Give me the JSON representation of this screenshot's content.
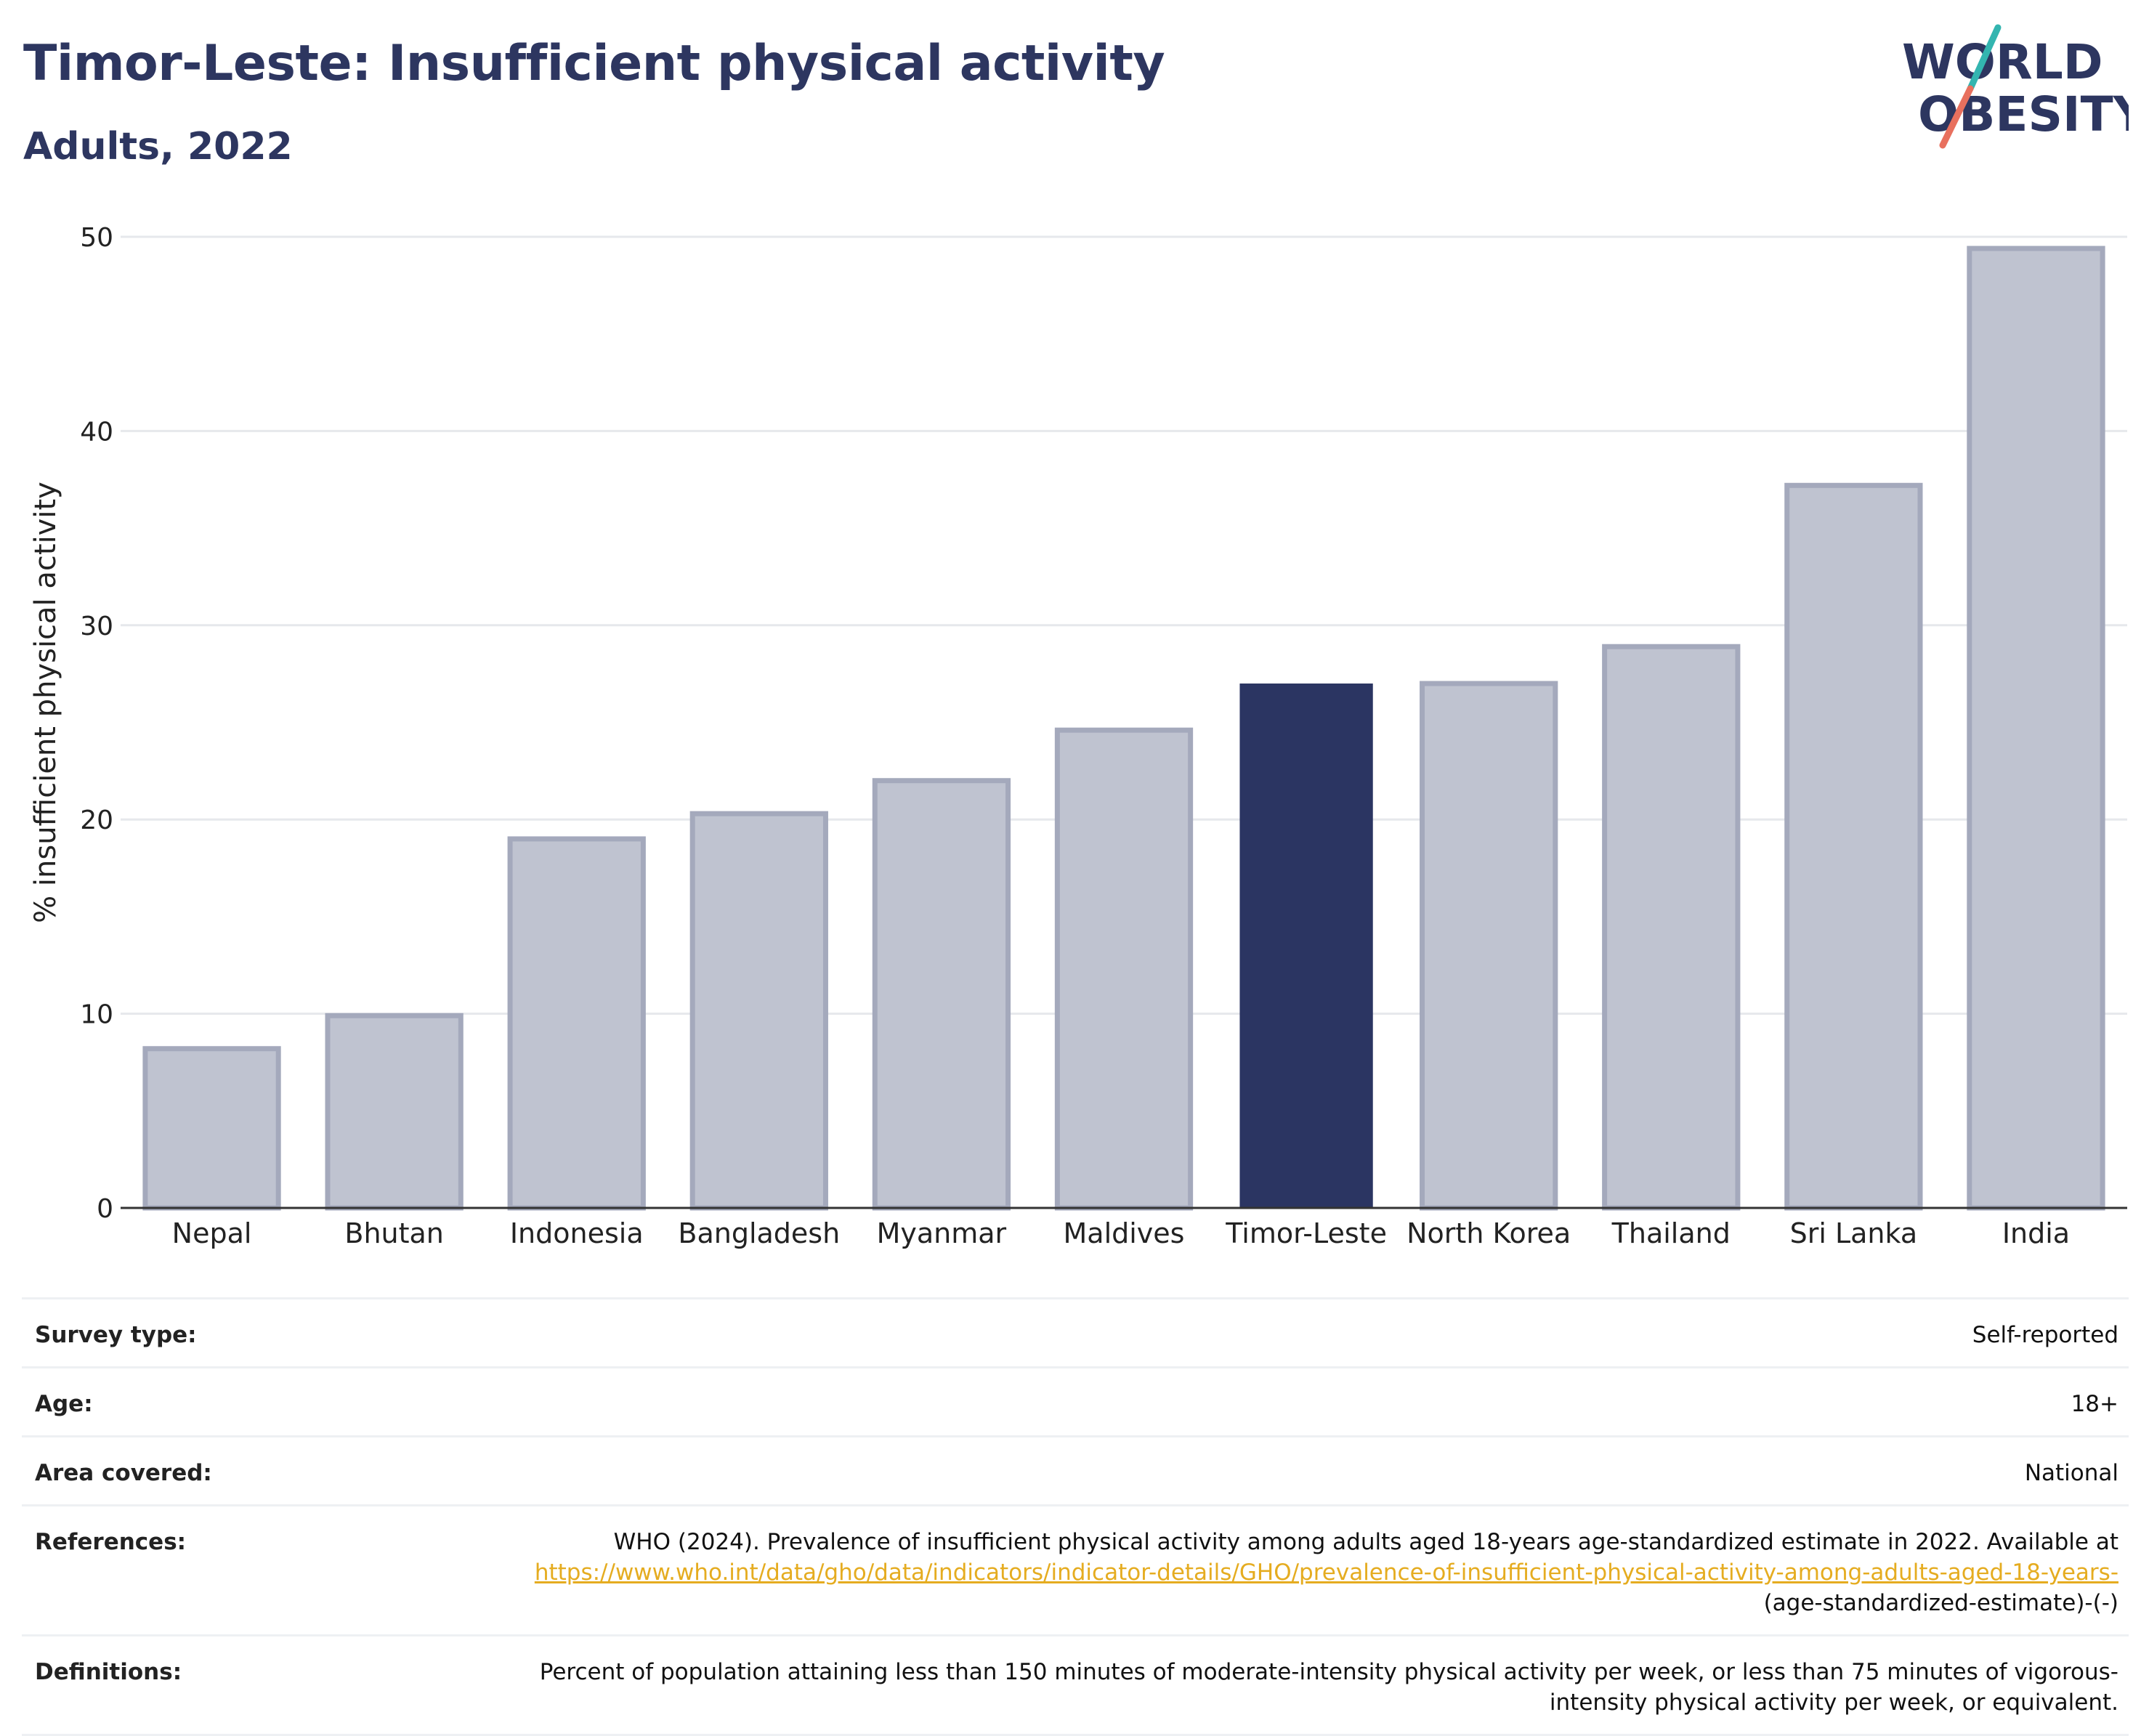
{
  "header": {
    "title": "Timor-Leste: Insufficient physical activity",
    "subtitle": "Adults, 2022"
  },
  "logo": {
    "line1": "WORLD",
    "line2": "OBESITY"
  },
  "colors": {
    "navy": "#2d3660",
    "highlight_bar": "#2b3562",
    "other_bar_fill": "#bfc3d0",
    "other_bar_stroke": "#a4a9bc",
    "grid": "#e6e8ec",
    "logo_teal": "#33b5b0",
    "logo_coral": "#e8705e",
    "link": "#e5ac20"
  },
  "chart_data": {
    "type": "bar",
    "categories": [
      "Nepal",
      "Bhutan",
      "Indonesia",
      "Bangladesh",
      "Myanmar",
      "Maldives",
      "Timor-Leste",
      "North Korea",
      "Thailand",
      "Sri Lanka",
      "India"
    ],
    "values": [
      8.2,
      9.9,
      19.0,
      20.3,
      22.0,
      24.6,
      27.0,
      27.0,
      28.9,
      37.2,
      49.4
    ],
    "highlight": "Timor-Leste",
    "ylabel": "% insufficient physical activity",
    "xlabel": "",
    "ylim": [
      0,
      50
    ],
    "yticks": [
      0,
      10,
      20,
      30,
      40,
      50
    ],
    "grid": true,
    "legend": "none"
  },
  "details": {
    "survey_type": {
      "label": "Survey type:",
      "value": "Self-reported"
    },
    "age": {
      "label": "Age:",
      "value": "18+"
    },
    "area": {
      "label": "Area covered:",
      "value": "National"
    },
    "references": {
      "label": "References:",
      "text": "WHO (2024). Prevalence of insufficient physical activity among adults aged 18-years age-standardized estimate in 2022. Available at ",
      "link": "https://www.who.int/data/gho/data/indicators/indicator-details/GHO/prevalence-of-insufficient-physical-activity-among-adults-aged-18-years-",
      "suffix": "(age-standardized-estimate)-(-)"
    },
    "definitions": {
      "label": "Definitions:",
      "value": "Percent of population attaining less than 150 minutes of moderate-intensity physical activity per week, or less than 75 minutes of vigorous-intensity physical activity per week, or equivalent."
    }
  }
}
